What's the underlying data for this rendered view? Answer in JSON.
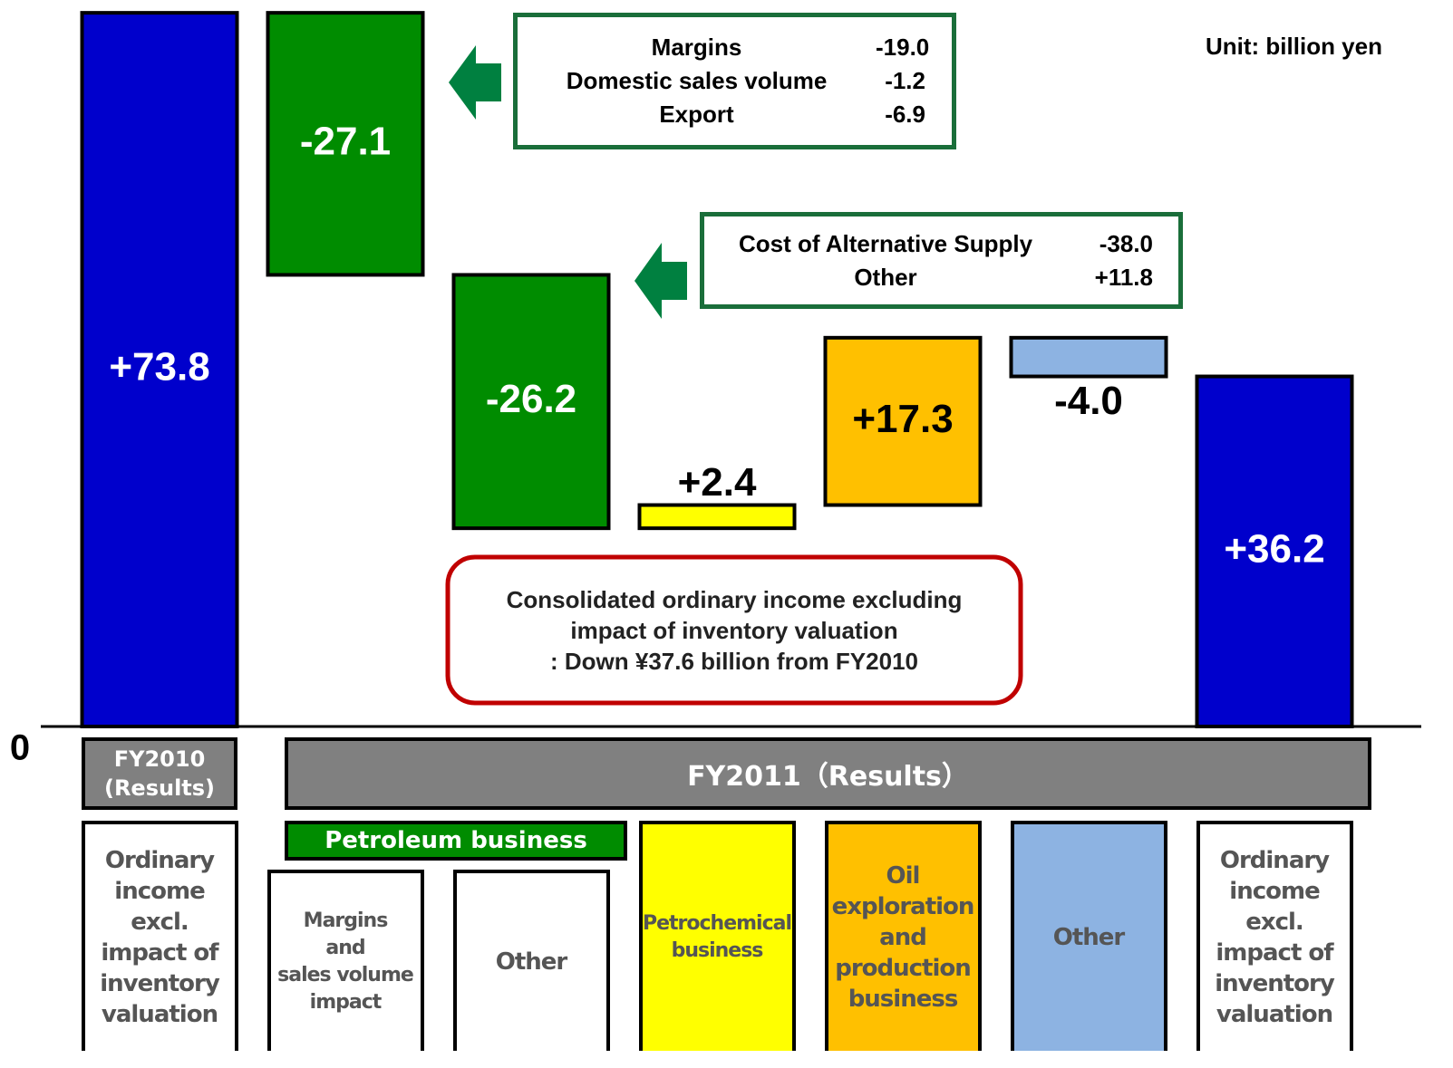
{
  "chart_data": {
    "type": "waterfall",
    "unit": "Unit: billion yen",
    "categories": [
      "Ordinary\nincome excl.\nimpact of\ninventory\nvaluation",
      "Margins\nand\nsales volume\nimpact",
      "Other",
      "Petrochemical\nbusiness",
      "Oil\nexploration\nand\nproduction\nbusiness",
      "Other",
      "Ordinary\nincome excl.\nimpact of\ninventory\nvaluation"
    ],
    "measure": [
      "absolute",
      "relative",
      "relative",
      "relative",
      "relative",
      "relative",
      "absolute"
    ],
    "values": [
      73.8,
      -27.1,
      -26.2,
      2.4,
      17.3,
      -4.0,
      36.2
    ],
    "value_labels": [
      "+73.8",
      "-27.1",
      "-26.2",
      "+2.4",
      "+17.3",
      "-4.0",
      "+36.2"
    ],
    "colors": [
      "#0000cc",
      "#008c00",
      "#008c00",
      "#ffff00",
      "#ffc000",
      "#8db3e2",
      "#0000cc"
    ],
    "ylim": [
      0,
      74
    ],
    "yticks": [
      0
    ],
    "groups": [
      "FY2010\n(Results)",
      "FY2011（Results）"
    ],
    "subgroup": "Petroleum business",
    "callouts": [
      {
        "items": [
          {
            "label": "Margins",
            "value": "-19.0"
          },
          {
            "label": "Domestic sales volume",
            "value": "-1.2"
          },
          {
            "label": "Export",
            "value": "-6.9"
          }
        ]
      },
      {
        "items": [
          {
            "label": "Cost of Alternative Supply",
            "value": "-38.0"
          },
          {
            "label": "Other",
            "value": "+11.8"
          }
        ]
      }
    ],
    "note": "Consolidated ordinary income excluding\nimpact of inventory valuation\n: Down ¥37.6 billion from FY2010"
  }
}
